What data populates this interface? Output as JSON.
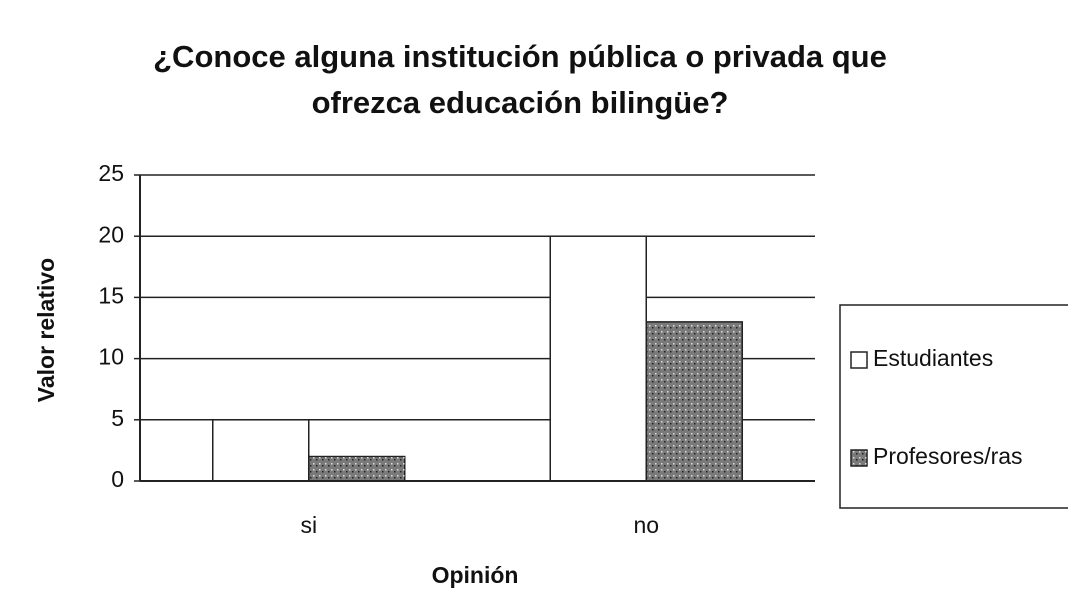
{
  "chart_data": {
    "type": "bar",
    "title": "¿Conoce alguna institución pública o privada que ofrezca educación bilingüe?",
    "categories": [
      "si",
      "no"
    ],
    "series": [
      {
        "name": "Estudiantes",
        "color": "#ffffff",
        "values": [
          5,
          20
        ]
      },
      {
        "name": "Profesores/ras",
        "color": "#7a7a7a",
        "values": [
          2,
          13
        ]
      }
    ],
    "xlabel": "Opinión",
    "ylabel": "Valor relativo",
    "ylim": [
      0,
      25
    ],
    "yticks": [
      0,
      5,
      10,
      15,
      20,
      25
    ],
    "grid": true,
    "legend": "right"
  }
}
